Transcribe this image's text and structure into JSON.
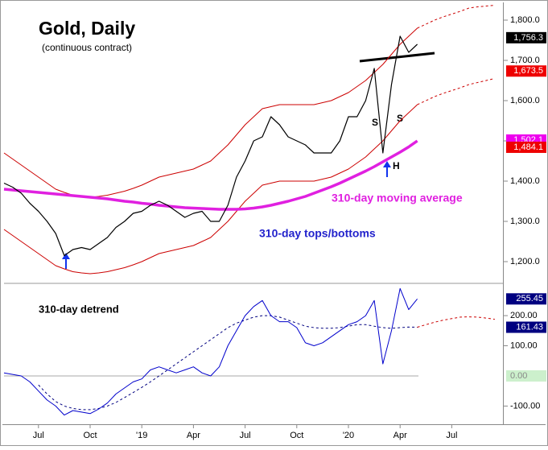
{
  "chart_data": [
    {
      "type": "line",
      "title": "Gold, Daily",
      "subtitle": "(continuous contract)",
      "categories": [
        null,
        null,
        null,
        null,
        "Jul",
        null,
        null,
        null,
        null,
        null,
        "Oct",
        null,
        null,
        null,
        null,
        null,
        "'19",
        null,
        null,
        null,
        null,
        null,
        "Apr",
        null,
        null,
        null,
        null,
        null,
        "Jul",
        null,
        null,
        null,
        null,
        null,
        "Oct",
        null,
        null,
        null,
        null,
        null,
        "'20",
        null,
        null,
        null,
        null,
        null,
        "Apr",
        null,
        null,
        null,
        null,
        null,
        "Jul",
        null,
        null,
        null,
        null,
        null
      ],
      "ylim": [
        1150,
        1840
      ],
      "yticks": [
        {
          "value": 1200,
          "label": "1,200.0"
        },
        {
          "value": 1300,
          "label": "1,300.0"
        },
        {
          "value": 1400,
          "label": "1,400.0"
        },
        {
          "value": 1500,
          "label": "1,500.0"
        },
        {
          "value": 1600,
          "label": "1,600.0"
        },
        {
          "value": 1700,
          "label": "1,700.0"
        },
        {
          "value": 1800,
          "label": "1,800.0"
        }
      ],
      "annotations": [
        "310-day moving average",
        "310-day tops/bottoms",
        "S",
        "S",
        "H"
      ],
      "series": [
        {
          "color": "#cc0000",
          "style": "solid",
          "width": 1,
          "values": [
            1470,
            1455,
            1440,
            1425,
            1410,
            1395,
            1380,
            1372,
            1365,
            1362,
            1360,
            1362,
            1365,
            1370,
            1375,
            1382,
            1390,
            1400,
            1410,
            1415,
            1420,
            1425,
            1430,
            1440,
            1450,
            1470,
            1490,
            1515,
            1540,
            1560,
            1580,
            1585,
            1590,
            1590,
            1590,
            1590,
            1590,
            1595,
            1600,
            1610,
            1620,
            1635,
            1650,
            1670,
            1690,
            1715,
            1740,
            1760,
            1780,
            null,
            null,
            null,
            null,
            null,
            null,
            null,
            null,
            null
          ]
        },
        {
          "color": "#cc0000",
          "style": "dashed",
          "width": 1,
          "values": [
            null,
            null,
            null,
            null,
            null,
            null,
            null,
            null,
            null,
            null,
            null,
            null,
            null,
            null,
            null,
            null,
            null,
            null,
            null,
            null,
            null,
            null,
            null,
            null,
            null,
            null,
            null,
            null,
            null,
            null,
            null,
            null,
            null,
            null,
            null,
            null,
            null,
            null,
            null,
            null,
            null,
            null,
            null,
            null,
            null,
            null,
            null,
            null,
            1780,
            1790,
            1800,
            1808,
            1815,
            1822,
            1830,
            1833,
            1835,
            1837
          ]
        },
        {
          "color": "#cc0000",
          "style": "solid",
          "width": 1,
          "values": [
            1280,
            1265,
            1250,
            1235,
            1220,
            1205,
            1190,
            1182,
            1175,
            1172,
            1170,
            1172,
            1175,
            1180,
            1185,
            1192,
            1200,
            1210,
            1220,
            1225,
            1230,
            1235,
            1240,
            1250,
            1260,
            1280,
            1300,
            1325,
            1350,
            1370,
            1390,
            1395,
            1400,
            1400,
            1400,
            1400,
            1400,
            1405,
            1410,
            1420,
            1430,
            1445,
            1460,
            1480,
            1500,
            1525,
            1550,
            1570,
            1590,
            null,
            null,
            null,
            null,
            null,
            null,
            null,
            null,
            null
          ]
        },
        {
          "color": "#cc0000",
          "style": "dashed",
          "width": 1,
          "values": [
            null,
            null,
            null,
            null,
            null,
            null,
            null,
            null,
            null,
            null,
            null,
            null,
            null,
            null,
            null,
            null,
            null,
            null,
            null,
            null,
            null,
            null,
            null,
            null,
            null,
            null,
            null,
            null,
            null,
            null,
            null,
            null,
            null,
            null,
            null,
            null,
            null,
            null,
            null,
            null,
            null,
            null,
            null,
            null,
            null,
            null,
            null,
            null,
            1590,
            1600,
            1610,
            1618,
            1625,
            1632,
            1640,
            1645,
            1650,
            1655
          ]
        },
        {
          "color": "#e020e0",
          "style": "solid",
          "width": 3.5,
          "values": [
            1380,
            1378,
            1376,
            1374,
            1372,
            1370,
            1368,
            1366,
            1364,
            1362,
            1360,
            1358,
            1356,
            1353,
            1350,
            1348,
            1345,
            1343,
            1340,
            1338,
            1336,
            1334,
            1333,
            1332,
            1331,
            1330,
            1330,
            1330,
            1331,
            1333,
            1336,
            1340,
            1345,
            1350,
            1356,
            1362,
            1370,
            1378,
            1386,
            1395,
            1405,
            1415,
            1425,
            1436,
            1448,
            1460,
            1472,
            1485,
            1500,
            null,
            null,
            null,
            null,
            null,
            null,
            null,
            null,
            null
          ]
        },
        {
          "color": "#000000",
          "style": "solid",
          "width": 1.2,
          "values": [
            1395,
            1385,
            1370,
            1345,
            1325,
            1300,
            1270,
            1215,
            1230,
            1235,
            1230,
            1245,
            1260,
            1285,
            1300,
            1320,
            1325,
            1340,
            1350,
            1340,
            1325,
            1310,
            1320,
            1325,
            1300,
            1300,
            1340,
            1410,
            1450,
            1500,
            1510,
            1560,
            1540,
            1510,
            1500,
            1490,
            1470,
            1470,
            1470,
            1500,
            1560,
            1560,
            1600,
            1680,
            1470,
            1640,
            1760,
            1720,
            1740,
            null,
            null,
            null,
            null,
            null,
            null,
            null,
            null,
            null
          ]
        }
      ],
      "value_boxes": [
        {
          "value": 1756.3,
          "label": "1,756.3",
          "color": "#000000",
          "text_color": "#ffffff"
        },
        {
          "value": 1673.5,
          "label": "1,673.5",
          "color": "#ee0000",
          "text_color": "#ffffff"
        },
        {
          "value": 1502.1,
          "label": "1,502.1",
          "color": "#ee00ee",
          "text_color": "#ffffff"
        },
        {
          "value": 1484.1,
          "label": "1,484.1",
          "color": "#ee0000",
          "text_color": "#ffffff"
        }
      ]
    },
    {
      "type": "line",
      "title": "310-day detrend",
      "ylim": [
        -155,
        299
      ],
      "yticks": [
        {
          "value": -100,
          "label": "-100.00"
        },
        {
          "value": 100,
          "label": "100.00"
        },
        {
          "value": 200,
          "label": "200.00"
        }
      ],
      "series": [
        {
          "color": "#000080",
          "style": "dashed",
          "width": 1,
          "values": [
            null,
            null,
            null,
            null,
            -30,
            -60,
            -85,
            -100,
            -108,
            -112,
            -112,
            -108,
            -100,
            -88,
            -72,
            -55,
            -38,
            -20,
            0,
            20,
            40,
            60,
            80,
            100,
            120,
            140,
            160,
            175,
            185,
            195,
            200,
            200,
            195,
            185,
            175,
            165,
            160,
            158,
            158,
            160,
            165,
            170,
            170,
            165,
            160,
            158,
            160,
            162,
            161.43,
            null,
            null,
            null,
            null,
            null,
            null,
            null,
            null,
            null
          ]
        },
        {
          "color": "#cc0000",
          "style": "dashed",
          "width": 1,
          "values": [
            null,
            null,
            null,
            null,
            null,
            null,
            null,
            null,
            null,
            null,
            null,
            null,
            null,
            null,
            null,
            null,
            null,
            null,
            null,
            null,
            null,
            null,
            null,
            null,
            null,
            null,
            null,
            null,
            null,
            null,
            null,
            null,
            null,
            null,
            null,
            null,
            null,
            null,
            null,
            null,
            null,
            null,
            null,
            null,
            null,
            null,
            null,
            null,
            161.43,
            170,
            178,
            185,
            190,
            195,
            196,
            195,
            192,
            188
          ]
        },
        {
          "color": "#0000cc",
          "style": "solid",
          "width": 1,
          "values": [
            10,
            5,
            0,
            -20,
            -50,
            -80,
            -100,
            -130,
            -115,
            -120,
            -125,
            -110,
            -90,
            -60,
            -40,
            -20,
            -10,
            20,
            30,
            20,
            10,
            20,
            30,
            10,
            0,
            30,
            100,
            150,
            200,
            230,
            250,
            200,
            180,
            180,
            160,
            110,
            100,
            110,
            130,
            150,
            170,
            180,
            200,
            250,
            40,
            150,
            290,
            220,
            255.45,
            null,
            null,
            null,
            null,
            null,
            null,
            null,
            null,
            null
          ]
        }
      ],
      "zero_line": {
        "value": 0,
        "label": "0.00",
        "color": "#ccf0cc",
        "text_color": "#888888"
      },
      "value_boxes": [
        {
          "value": 255.45,
          "label": "255.45",
          "color": "#000080",
          "text_color": "#ffffff"
        },
        {
          "value": 161.43,
          "label": "161.43",
          "color": "#000080",
          "text_color": "#ffffff"
        }
      ]
    }
  ]
}
